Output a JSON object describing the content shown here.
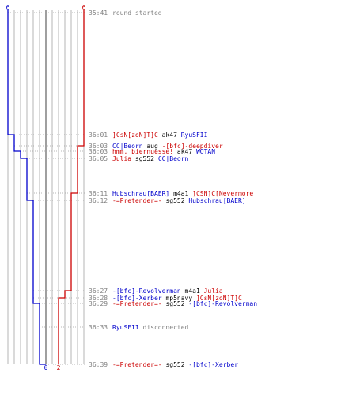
{
  "chart_data": {
    "type": "line",
    "teams": [
      {
        "id": "blue",
        "color": "#0000cc",
        "start_count": "6",
        "end_count": "0"
      },
      {
        "id": "red",
        "color": "#cc0000",
        "start_count": "6",
        "end_count": "2"
      }
    ],
    "colors": {
      "blue": "#0000cc",
      "red": "#cc0000",
      "neutral": "#000000",
      "time": "#808080",
      "grid": "#b4b4b4",
      "center_line": "#606060",
      "dotted": "#a0a0a0"
    },
    "players_min": 0,
    "players_max": 6,
    "events": [
      {
        "time": "35:41",
        "parts": [
          {
            "text": "round started",
            "color": "time"
          }
        ],
        "blue_after": 6,
        "red_after": 6
      },
      {
        "time": "36:01",
        "parts": [
          {
            "text": "]CsN[zoN]T]C",
            "color": "red"
          },
          {
            "text": " ak47 ",
            "color": "neutral"
          },
          {
            "text": "RyuSFII",
            "color": "blue"
          }
        ],
        "blue_after": 5,
        "red_after": 6
      },
      {
        "time": "36:03",
        "parts": [
          {
            "text": "CC|Beorn",
            "color": "blue"
          },
          {
            "text": " aug ",
            "color": "neutral"
          },
          {
            "text": "-[bfc]-deepdiver",
            "color": "red"
          }
        ],
        "blue_after": 5,
        "red_after": 5
      },
      {
        "time": "36:03",
        "parts": [
          {
            "text": "hmm, biernuesse!",
            "color": "red"
          },
          {
            "text": " ak47 ",
            "color": "neutral"
          },
          {
            "text": "WOTAN",
            "color": "blue"
          }
        ],
        "blue_after": 4,
        "red_after": 5
      },
      {
        "time": "36:05",
        "parts": [
          {
            "text": "Julia",
            "color": "red"
          },
          {
            "text": " sg552 ",
            "color": "neutral"
          },
          {
            "text": "CC|Beorn",
            "color": "blue"
          }
        ],
        "blue_after": 3,
        "red_after": 5
      },
      {
        "time": "36:11",
        "parts": [
          {
            "text": "Hubschrau[BAER]",
            "color": "blue"
          },
          {
            "text": " m4a1 ",
            "color": "neutral"
          },
          {
            "text": "]CSN]C[Nevermore",
            "color": "red"
          }
        ],
        "blue_after": 3,
        "red_after": 4
      },
      {
        "time": "36:12",
        "parts": [
          {
            "text": "-=Pretender=-",
            "color": "red"
          },
          {
            "text": " sg552 ",
            "color": "neutral"
          },
          {
            "text": "Hubschrau[BAER]",
            "color": "blue"
          }
        ],
        "blue_after": 2,
        "red_after": 4
      },
      {
        "time": "36:27",
        "parts": [
          {
            "text": "-[bfc]-Revolverman",
            "color": "blue"
          },
          {
            "text": " m4a1 ",
            "color": "neutral"
          },
          {
            "text": "Julia",
            "color": "red"
          }
        ],
        "blue_after": 2,
        "red_after": 3
      },
      {
        "time": "36:28",
        "parts": [
          {
            "text": "-[bfc]-Xerber",
            "color": "blue"
          },
          {
            "text": " mp5navy ",
            "color": "neutral"
          },
          {
            "text": "]CsN[zoN]T]C",
            "color": "red"
          }
        ],
        "blue_after": 2,
        "red_after": 2
      },
      {
        "time": "36:29",
        "parts": [
          {
            "text": "-=Pretender=-",
            "color": "red"
          },
          {
            "text": " sg552 ",
            "color": "neutral"
          },
          {
            "text": "-[bfc]-Revolverman",
            "color": "blue"
          }
        ],
        "blue_after": 1,
        "red_after": 2
      },
      {
        "time": "36:33",
        "parts": [
          {
            "text": "RyuSFII",
            "color": "blue"
          },
          {
            "text": " disconnected",
            "color": "time"
          }
        ],
        "blue_after": 1,
        "red_after": 2
      },
      {
        "time": "36:39",
        "parts": [
          {
            "text": "-=Pretender=-",
            "color": "red"
          },
          {
            "text": " sg552 ",
            "color": "neutral"
          },
          {
            "text": "-[bfc]-Xerber",
            "color": "blue"
          }
        ],
        "blue_after": 0,
        "red_after": 2
      }
    ]
  }
}
